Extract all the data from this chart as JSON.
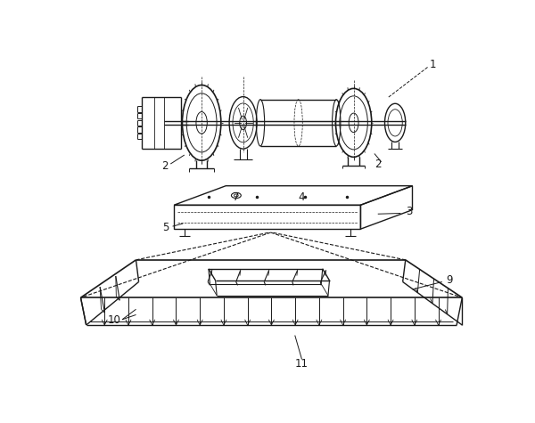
{
  "bg_color": "#ffffff",
  "line_color": "#1a1a1a",
  "label_color": "#000000",
  "fig_width": 6.0,
  "fig_height": 4.75,
  "dpi": 100
}
